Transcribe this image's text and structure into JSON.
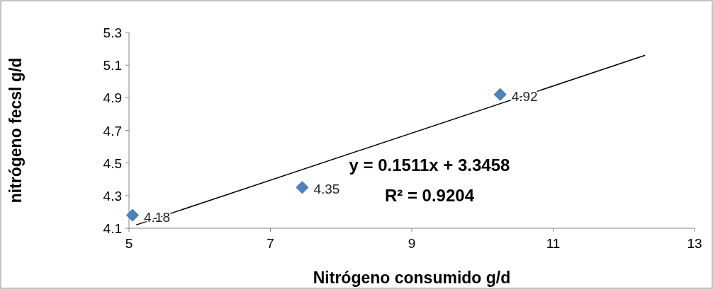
{
  "chart_data": {
    "type": "scatter",
    "xlabel": "Nitrógeno consumido g/d",
    "ylabel": "nitrógeno fecsl g/d",
    "xlim": [
      5,
      13
    ],
    "xticks": [
      5,
      7,
      9,
      11,
      13
    ],
    "ylim": [
      4.1,
      5.3
    ],
    "yticks": [
      4.1,
      4.3,
      4.5,
      4.7,
      4.9,
      5.1,
      5.3
    ],
    "grid": false,
    "marker": "diamond",
    "series": [
      {
        "color": "#4f81bd",
        "x": [
          5.05,
          7.45,
          10.25
        ],
        "values": [
          4.18,
          4.35,
          4.92
        ],
        "value_labels": [
          "4.18",
          "4.35",
          "4.92"
        ]
      },
      {
        "type": "line",
        "color": "#000000",
        "x": [
          5.1,
          12.3
        ],
        "values": [
          4.12,
          5.16
        ],
        "marker": "none",
        "line_style": "solid"
      }
    ],
    "annotations": [
      "y = 0.1511x + 3.3458",
      "R² = 0.9204"
    ]
  }
}
